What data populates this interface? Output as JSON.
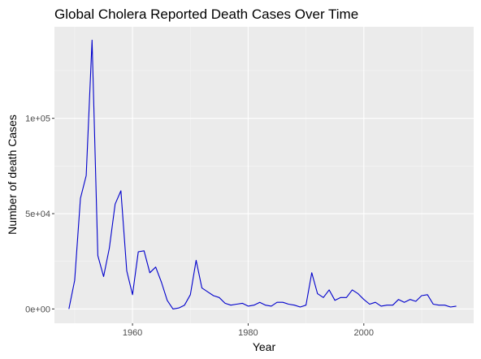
{
  "chart_data": {
    "type": "line",
    "title": "Global Cholera Reported Death Cases Over Time",
    "xlabel": "Year",
    "ylabel": "Number of death Cases",
    "xlim": [
      1946.5,
      2019
    ],
    "ylim": [
      -7500,
      148000
    ],
    "x_ticks": [
      1960,
      1980,
      2000
    ],
    "x_tick_labels": [
      "1960",
      "1980",
      "2000"
    ],
    "y_ticks": [
      0,
      50000,
      100000
    ],
    "y_tick_labels": [
      "0e+00",
      "5e+04",
      "1e+05"
    ],
    "grid": true,
    "legend": "none",
    "colors": {
      "line": "#0000cc",
      "panel": "#ebebeb",
      "grid_major": "#ffffff",
      "grid_minor": "#f5f5f5",
      "tick": "#4d4d4d"
    },
    "series": [
      {
        "x": [
          1949,
          1950,
          1951,
          1952,
          1953,
          1954,
          1955,
          1956,
          1957,
          1958,
          1959,
          1960,
          1961,
          1962,
          1963,
          1964,
          1965,
          1966,
          1967,
          1968,
          1969,
          1970,
          1971,
          1972,
          1973,
          1974,
          1975,
          1976,
          1977,
          1978,
          1979,
          1980,
          1981,
          1982,
          1983,
          1984,
          1985,
          1986,
          1987,
          1988,
          1989,
          1990,
          1991,
          1992,
          1993,
          1994,
          1995,
          1996,
          1997,
          1998,
          1999,
          2000,
          2001,
          2002,
          2003,
          2004,
          2005,
          2006,
          2007,
          2008,
          2009,
          2010,
          2011,
          2012,
          2013,
          2014,
          2015,
          2016
        ],
        "y": [
          0,
          15000,
          58000,
          70000,
          141000,
          28000,
          17000,
          32000,
          55000,
          62000,
          20000,
          7500,
          30000,
          30500,
          19000,
          22000,
          14000,
          4500,
          0,
          500,
          2000,
          7500,
          25500,
          11000,
          9000,
          7000,
          6000,
          3000,
          2000,
          2500,
          3000,
          1500,
          2000,
          3500,
          2000,
          1500,
          3500,
          3500,
          2500,
          2000,
          1000,
          2000,
          19000,
          8000,
          6000,
          10000,
          4500,
          6000,
          6000,
          10000,
          8000,
          5000,
          2500,
          3500,
          1500,
          2000,
          2000,
          5000,
          3500,
          5000,
          4000,
          7000,
          7500,
          2500,
          2000,
          2000,
          1000,
          1500
        ]
      }
    ]
  }
}
